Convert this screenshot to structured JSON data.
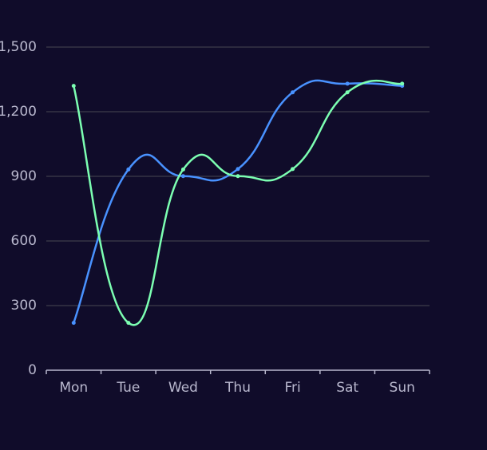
{
  "chart_data": {
    "type": "line",
    "categories": [
      "Mon",
      "Tue",
      "Wed",
      "Thu",
      "Fri",
      "Sat",
      "Sun"
    ],
    "series": [
      {
        "color": "#4992ff",
        "values": [
          220,
          932,
          901,
          934,
          1290,
          1330,
          1320
        ]
      },
      {
        "color": "#7cffb2",
        "values": [
          1320,
          220,
          932,
          901,
          934,
          1290,
          1330
        ]
      }
    ],
    "ylim": [
      0,
      1500
    ],
    "yticks": [
      0,
      300,
      600,
      900,
      {
        "value": 1200,
        "label": "1,200"
      },
      {
        "value": 1500,
        "label": "1,500"
      }
    ],
    "grid": true,
    "smooth": true
  }
}
